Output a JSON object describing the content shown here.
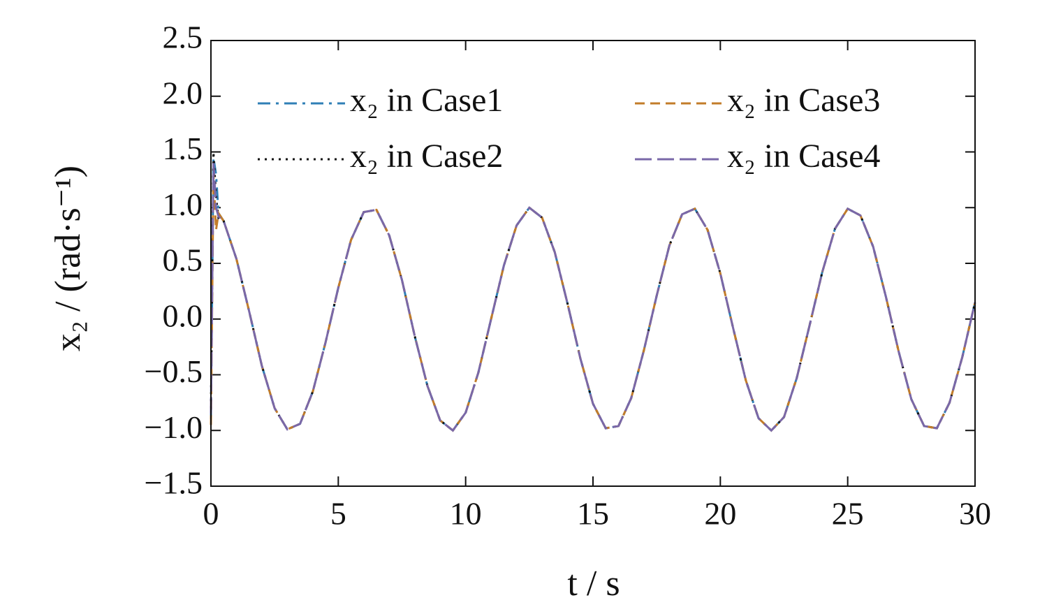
{
  "chart_data": {
    "type": "line",
    "xlabel": "t / s",
    "ylabel": "x₂ / (rad·s⁻¹)",
    "xlim": [
      0,
      30
    ],
    "xticks": [
      0,
      5,
      10,
      15,
      20,
      25,
      30
    ],
    "ylim": [
      -1.5,
      2.5
    ],
    "yticks": [
      {
        "value": -1.5,
        "label": "−1.5"
      },
      {
        "value": -1,
        "label": "−1.0"
      },
      {
        "value": -0.5,
        "label": "−0.5"
      },
      {
        "value": 0,
        "label": "0.0"
      },
      {
        "value": 0.5,
        "label": "0.5"
      },
      {
        "value": 1,
        "label": "1.0"
      },
      {
        "value": 1.5,
        "label": "1.5"
      },
      {
        "value": 2,
        "label": "2.0"
      },
      {
        "value": 2.5,
        "label": "2.5"
      }
    ],
    "legend": "upper center",
    "x": [
      0,
      0.1,
      0.2,
      0.3,
      0.5,
      1,
      1.5,
      2,
      2.5,
      3,
      3.5,
      4,
      4.5,
      5,
      5.5,
      6,
      6.5,
      7,
      7.5,
      8,
      8.5,
      9,
      9.5,
      10,
      10.5,
      11,
      11.5,
      12,
      12.5,
      13,
      13.5,
      14,
      14.5,
      15,
      15.5,
      16,
      16.5,
      17,
      17.5,
      18,
      18.5,
      19,
      19.5,
      20,
      20.5,
      21,
      21.5,
      22,
      22.5,
      23,
      23.5,
      24,
      24.5,
      25,
      25.5,
      26,
      26.5,
      27,
      27.5,
      28,
      28.5,
      29,
      29.5,
      30
    ],
    "series": [
      {
        "name": "x₂ in Case1",
        "color": "#2f7fb6",
        "dash": "dashdot",
        "values": [
          -0.9,
          1.45,
          1.3,
          0.95,
          0.88,
          0.54,
          0.07,
          -0.42,
          -0.8,
          -0.99,
          -0.94,
          -0.65,
          -0.21,
          0.28,
          0.71,
          0.96,
          0.98,
          0.75,
          0.35,
          -0.15,
          -0.6,
          -0.91,
          -1.0,
          -0.84,
          -0.48,
          0.0,
          0.48,
          0.84,
          1.0,
          0.91,
          0.6,
          0.14,
          -0.35,
          -0.76,
          -0.98,
          -0.96,
          -0.71,
          -0.28,
          0.21,
          0.66,
          0.94,
          0.99,
          0.8,
          0.41,
          -0.08,
          -0.55,
          -0.89,
          -1.0,
          -0.88,
          -0.53,
          -0.06,
          0.42,
          0.81,
          0.99,
          0.93,
          0.65,
          0.2,
          -0.29,
          -0.72,
          -0.96,
          -0.98,
          -0.75,
          -0.34,
          0.15
        ]
      },
      {
        "name": "x₂ in Case2",
        "color": "#111111",
        "dash": "dotted",
        "values": [
          -0.8,
          1.5,
          1.1,
          0.9,
          0.88,
          0.54,
          0.07,
          -0.42,
          -0.8,
          -0.99,
          -0.94,
          -0.65,
          -0.21,
          0.28,
          0.71,
          0.96,
          0.98,
          0.75,
          0.35,
          -0.15,
          -0.6,
          -0.91,
          -1.0,
          -0.84,
          -0.48,
          0.0,
          0.48,
          0.84,
          1.0,
          0.91,
          0.6,
          0.14,
          -0.35,
          -0.76,
          -0.98,
          -0.96,
          -0.71,
          -0.28,
          0.21,
          0.66,
          0.94,
          0.99,
          0.8,
          0.41,
          -0.08,
          -0.55,
          -0.89,
          -1.0,
          -0.88,
          -0.53,
          -0.06,
          0.42,
          0.81,
          0.99,
          0.93,
          0.65,
          0.2,
          -0.29,
          -0.72,
          -0.96,
          -0.98,
          -0.75,
          -0.34,
          0.15
        ]
      },
      {
        "name": "x₂ in Case3",
        "color": "#c27c2a",
        "dash": "dashed",
        "values": [
          -0.95,
          1.3,
          0.8,
          0.95,
          0.88,
          0.54,
          0.07,
          -0.42,
          -0.8,
          -0.99,
          -0.94,
          -0.65,
          -0.21,
          0.28,
          0.71,
          0.96,
          0.98,
          0.75,
          0.35,
          -0.15,
          -0.6,
          -0.91,
          -1.0,
          -0.84,
          -0.48,
          0.0,
          0.48,
          0.84,
          1.0,
          0.91,
          0.6,
          0.14,
          -0.35,
          -0.76,
          -0.98,
          -0.96,
          -0.71,
          -0.28,
          0.21,
          0.66,
          0.94,
          0.99,
          0.8,
          0.41,
          -0.08,
          -0.55,
          -0.89,
          -1.0,
          -0.88,
          -0.53,
          -0.06,
          0.42,
          0.81,
          0.99,
          0.93,
          0.65,
          0.2,
          -0.29,
          -0.72,
          -0.96,
          -0.98,
          -0.75,
          -0.34,
          0.15
        ]
      },
      {
        "name": "x₂ in Case4",
        "color": "#7a68a8",
        "dash": "longdash",
        "values": [
          -0.85,
          1.4,
          1.0,
          0.92,
          0.88,
          0.54,
          0.07,
          -0.42,
          -0.8,
          -0.99,
          -0.94,
          -0.65,
          -0.21,
          0.28,
          0.71,
          0.96,
          0.98,
          0.75,
          0.35,
          -0.15,
          -0.6,
          -0.91,
          -1.0,
          -0.84,
          -0.48,
          0.0,
          0.48,
          0.84,
          1.0,
          0.91,
          0.6,
          0.14,
          -0.35,
          -0.76,
          -0.98,
          -0.96,
          -0.71,
          -0.28,
          0.21,
          0.66,
          0.94,
          0.99,
          0.8,
          0.41,
          -0.08,
          -0.55,
          -0.89,
          -1.0,
          -0.88,
          -0.53,
          -0.06,
          0.42,
          0.81,
          0.99,
          0.93,
          0.65,
          0.2,
          -0.29,
          -0.72,
          -0.96,
          -0.98,
          -0.75,
          -0.34,
          0.15
        ]
      }
    ]
  }
}
